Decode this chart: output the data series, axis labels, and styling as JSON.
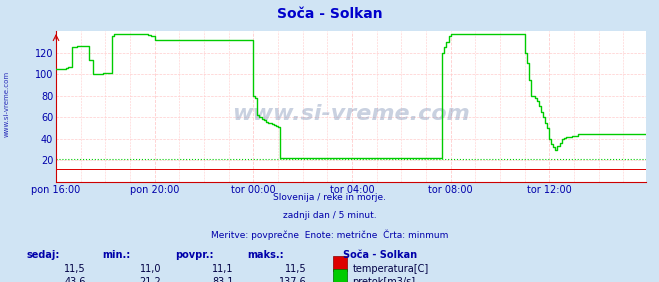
{
  "title": "Soča - Solkan",
  "bg_color": "#d0e4f4",
  "plot_bg_color": "#ffffff",
  "grid_color": "#ffcccc",
  "xlabel_color": "#0000aa",
  "title_color": "#0000cc",
  "watermark": "www.si-vreme.com",
  "subtitle_lines": [
    "Slovenija / reke in morje.",
    "zadnji dan / 5 minut.",
    "Meritve: povprečne  Enote: metrične  Črta: minmum"
  ],
  "x_labels": [
    "pon 16:00",
    "pon 20:00",
    "tor 00:00",
    "tor 04:00",
    "tor 08:00",
    "tor 12:00"
  ],
  "x_ticks_idx": [
    0,
    48,
    96,
    144,
    192,
    240
  ],
  "total_points": 288,
  "ylim": [
    0,
    140
  ],
  "yticks": [
    20,
    40,
    60,
    80,
    100,
    120
  ],
  "temp_color": "#dd0000",
  "flow_color": "#00cc00",
  "min_line_color": "#00cc00",
  "axis_color": "#cc0000",
  "stats_label_color": "#0000aa",
  "stats_value_color": "#000044",
  "stats_headers": [
    "sedaj:",
    "min.:",
    "povpr.:",
    "maks.:"
  ],
  "stats_temp": [
    "11,5",
    "11,0",
    "11,1",
    "11,5"
  ],
  "stats_flow": [
    "43,6",
    "21,2",
    "83,1",
    "137,6"
  ],
  "legend_title": "Soča - Solkan",
  "legend_temp_label": "temperatura[C]",
  "legend_flow_label": "pretok[m3/s]",
  "side_label": "www.si-vreme.com",
  "flow_data": [
    105,
    105,
    105,
    105,
    105,
    106,
    107,
    107,
    125,
    125,
    126,
    126,
    126,
    126,
    126,
    126,
    113,
    113,
    100,
    100,
    100,
    100,
    100,
    101,
    101,
    101,
    101,
    135,
    137,
    137,
    137,
    137,
    137,
    137,
    137,
    137,
    137,
    137,
    137,
    137,
    137,
    137,
    137,
    137,
    137,
    136,
    135,
    135,
    132,
    132,
    132,
    132,
    132,
    132,
    132,
    132,
    132,
    132,
    132,
    132,
    132,
    132,
    132,
    132,
    132,
    132,
    132,
    132,
    132,
    132,
    132,
    132,
    132,
    132,
    132,
    132,
    132,
    132,
    132,
    132,
    132,
    132,
    132,
    132,
    132,
    132,
    132,
    132,
    132,
    132,
    132,
    132,
    132,
    132,
    132,
    132,
    80,
    78,
    62,
    60,
    58,
    57,
    56,
    55,
    55,
    54,
    53,
    52,
    51,
    22,
    22,
    22,
    22,
    22,
    22,
    22,
    22,
    22,
    22,
    22,
    22,
    22,
    22,
    22,
    22,
    22,
    22,
    22,
    22,
    22,
    22,
    22,
    22,
    22,
    22,
    22,
    22,
    22,
    22,
    22,
    22,
    22,
    22,
    22,
    22,
    22,
    22,
    22,
    22,
    22,
    22,
    22,
    22,
    22,
    22,
    22,
    22,
    22,
    22,
    22,
    22,
    22,
    22,
    22,
    22,
    22,
    22,
    22,
    22,
    22,
    22,
    22,
    22,
    22,
    22,
    22,
    22,
    22,
    22,
    22,
    22,
    22,
    22,
    22,
    22,
    22,
    22,
    22,
    120,
    125,
    130,
    135,
    137,
    137,
    137,
    137,
    137,
    137,
    137,
    137,
    137,
    137,
    137,
    137,
    137,
    137,
    137,
    137,
    137,
    137,
    137,
    137,
    137,
    137,
    137,
    137,
    137,
    137,
    137,
    137,
    137,
    137,
    137,
    137,
    137,
    137,
    137,
    137,
    120,
    110,
    95,
    80,
    80,
    78,
    75,
    70,
    65,
    60,
    55,
    50,
    40,
    35,
    32,
    30,
    33,
    36,
    40,
    41,
    42,
    42,
    42,
    43,
    43,
    43,
    44,
    44,
    44,
    44,
    44,
    44,
    44,
    44,
    44,
    44,
    44,
    44,
    44,
    44,
    44,
    44,
    44,
    44,
    44,
    44,
    44,
    44,
    44,
    44,
    44,
    44,
    44,
    44,
    44,
    44,
    44,
    44,
    44,
    44
  ],
  "temp_data_value": 11.5,
  "min_flow_value": 21.2
}
